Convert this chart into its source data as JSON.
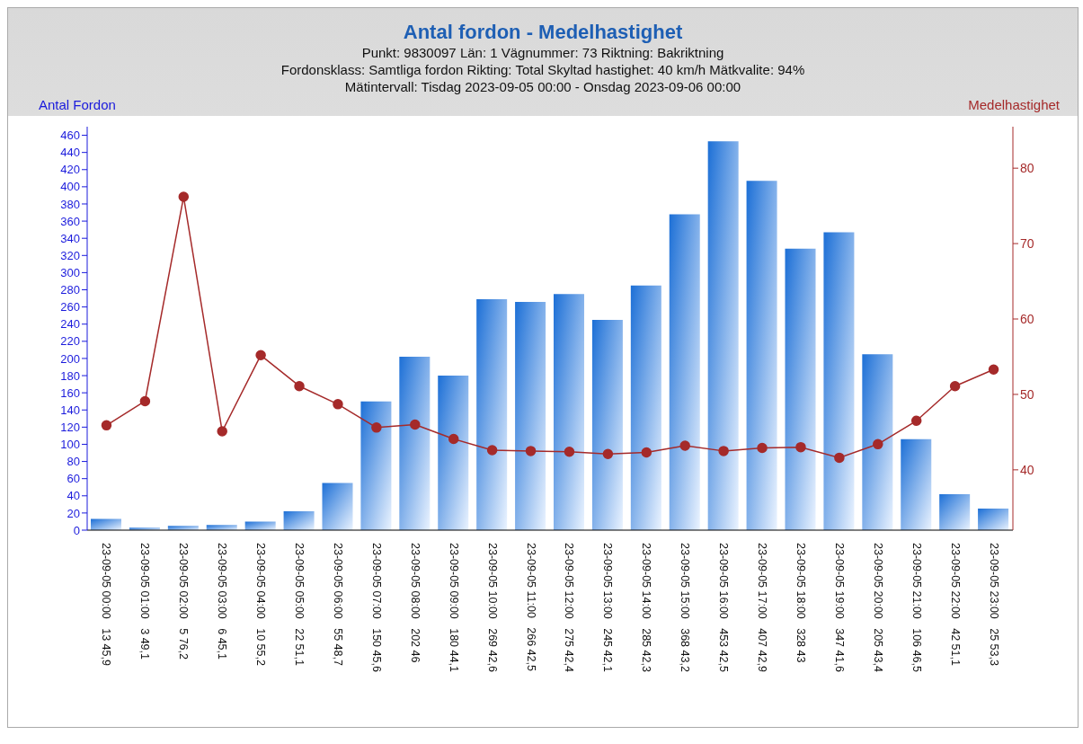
{
  "chart_data": {
    "type": "bar",
    "title": "Antal fordon - Medelhastighet",
    "subtitle": "Punkt: 9830097  Län: 1  Vägnummer: 73 Riktning: Bakriktning\nFordonsklass: Samtliga fordon Rikting: Total Skyltad hastighet: 40 km/h Mätkvalite: 94%\nMätintervall: Tisdag 2023-09-05 00:00 - Onsdag 2023-09-06 00:00",
    "ylabel": "Antal Fordon",
    "y2label": "Medelhastighet",
    "categories": [
      "23-09-05 00:00   13 45,9",
      "23-09-05 01:00   3 49,1",
      "23-09-05 02:00   5 76,2",
      "23-09-05 03:00   6 45,1",
      "23-09-05 04:00   10 55,2",
      "23-09-05 05:00   22 51,1",
      "23-09-05 06:00   55 48,7",
      "23-09-05 07:00   150 45,6",
      "23-09-05 08:00   202 46",
      "23-09-05 09:00   180 44,1",
      "23-09-05 10:00   269 42,6",
      "23-09-05 11:00   266 42,5",
      "23-09-05 12:00   275 42,4",
      "23-09-05 13:00   245 42,1",
      "23-09-05 14:00   285 42,3",
      "23-09-05 15:00   368 43,2",
      "23-09-05 16:00   453 42,5",
      "23-09-05 17:00   407 42,9",
      "23-09-05 18:00   328 43",
      "23-09-05 19:00   347 41,6",
      "23-09-05 20:00   205 43,4",
      "23-09-05 21:00   106 46,5",
      "23-09-05 22:00   42 51,1",
      "23-09-05 23:00   25 53,3"
    ],
    "series": [
      {
        "color": "#1c6fd6",
        "values": [
          13,
          3,
          5,
          6,
          10,
          22,
          55,
          150,
          202,
          180,
          269,
          266,
          275,
          245,
          285,
          368,
          453,
          407,
          328,
          347,
          205,
          106,
          42,
          25
        ]
      },
      {
        "type": "line",
        "axis": "y2",
        "color": "#a52a2a",
        "marker": "circle",
        "values": [
          45.9,
          49.1,
          76.2,
          45.1,
          55.2,
          51.1,
          48.7,
          45.6,
          46,
          44.1,
          42.6,
          42.5,
          42.4,
          42.1,
          42.3,
          43.2,
          42.5,
          42.9,
          43,
          41.6,
          43.4,
          46.5,
          51.1,
          53.3
        ]
      }
    ],
    "ylim": [
      0,
      470
    ],
    "yticks": [
      0,
      20,
      40,
      60,
      80,
      100,
      120,
      140,
      160,
      180,
      200,
      220,
      240,
      260,
      280,
      300,
      320,
      340,
      360,
      380,
      400,
      420,
      440,
      460
    ],
    "y2lim": [
      32,
      85.5
    ],
    "y2ticks": [
      40,
      50,
      60,
      70,
      80
    ]
  }
}
